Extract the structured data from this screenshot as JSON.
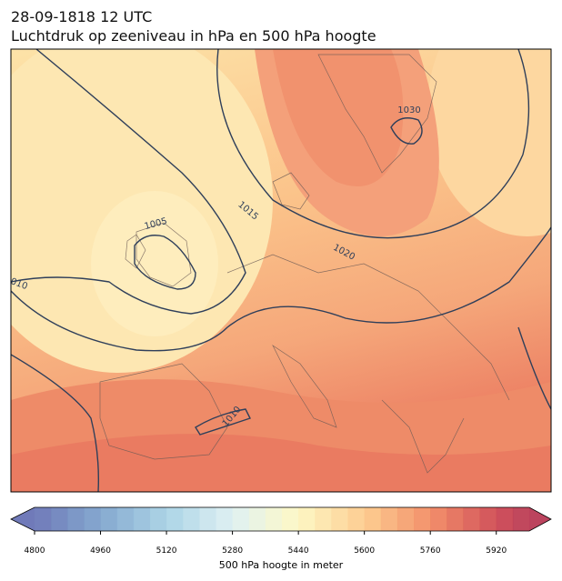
{
  "header": {
    "title_line1": "28-09-1818 12 UTC",
    "title_line2": "Luchtdruk op zeeniveau in hPa en 500 hPa hoogte"
  },
  "map": {
    "contour_labels": [
      "1030",
      "1015",
      "1020",
      "1005",
      "010",
      "1010"
    ]
  },
  "colorbar": {
    "lim": [
      4800,
      6000
    ],
    "ticks": [
      4800,
      4960,
      5120,
      5280,
      5440,
      5600,
      5760,
      5920
    ],
    "label": "500 hPa hoogte in meter"
  }
}
